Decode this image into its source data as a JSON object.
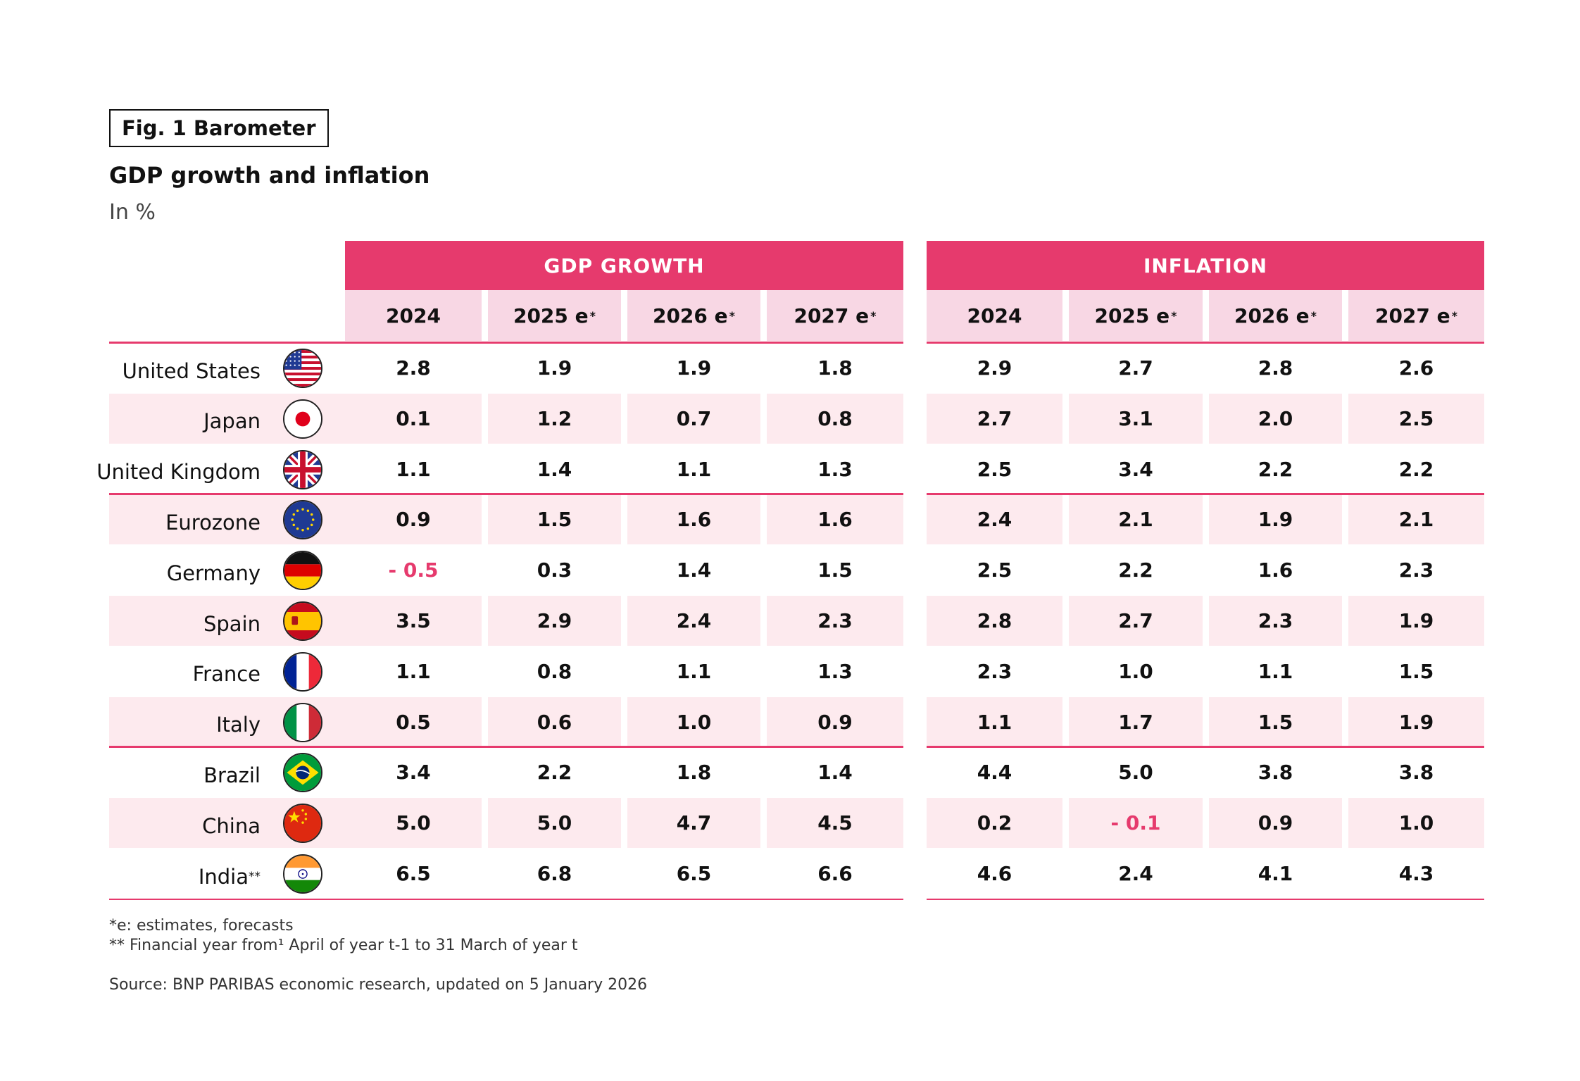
{
  "figure_label": "Fig. 1 Barometer",
  "title": "GDP growth and inflation",
  "subtitle": "In %",
  "colors": {
    "accent": "#e63a6d",
    "header_light": "#f8d7e4",
    "row_shade": "#fdeaee"
  },
  "chart_data": {
    "type": "table",
    "title": "GDP growth and inflation",
    "unit": "In %",
    "groups": [
      {
        "name": "GDP GROWTH",
        "columns": [
          {
            "year": "2024",
            "suffix": ""
          },
          {
            "year": "2025 e",
            "suffix": "*"
          },
          {
            "year": "2026 e",
            "suffix": "*"
          },
          {
            "year": "2027 e",
            "suffix": "*"
          }
        ]
      },
      {
        "name": "INFLATION",
        "columns": [
          {
            "year": "2024",
            "suffix": ""
          },
          {
            "year": "2025 e",
            "suffix": "*"
          },
          {
            "year": "2026 e",
            "suffix": "*"
          },
          {
            "year": "2027 e",
            "suffix": "*"
          }
        ]
      }
    ],
    "rows": [
      {
        "country": "United States",
        "suffix": "",
        "flag": "us-flag-icon",
        "gdp": [
          "2.8",
          "1.9",
          "1.9",
          "1.8"
        ],
        "inflation": [
          "2.9",
          "2.7",
          "2.8",
          "2.6"
        ]
      },
      {
        "country": "Japan",
        "suffix": "",
        "flag": "japan-flag-icon",
        "gdp": [
          "0.1",
          "1.2",
          "0.7",
          "0.8"
        ],
        "inflation": [
          "2.7",
          "3.1",
          "2.0",
          "2.5"
        ]
      },
      {
        "country": "United Kingdom",
        "suffix": "",
        "flag": "uk-flag-icon",
        "gdp": [
          "1.1",
          "1.4",
          "1.1",
          "1.3"
        ],
        "inflation": [
          "2.5",
          "3.4",
          "2.2",
          "2.2"
        ]
      },
      {
        "country": "Eurozone",
        "suffix": "",
        "flag": "eu-flag-icon",
        "gdp": [
          "0.9",
          "1.5",
          "1.6",
          "1.6"
        ],
        "inflation": [
          "2.4",
          "2.1",
          "1.9",
          "2.1"
        ]
      },
      {
        "country": "Germany",
        "suffix": "",
        "flag": "germany-flag-icon",
        "gdp": [
          "- 0.5",
          "0.3",
          "1.4",
          "1.5"
        ],
        "inflation": [
          "2.5",
          "2.2",
          "1.6",
          "2.3"
        ]
      },
      {
        "country": "Spain",
        "suffix": "",
        "flag": "spain-flag-icon",
        "gdp": [
          "3.5",
          "2.9",
          "2.4",
          "2.3"
        ],
        "inflation": [
          "2.8",
          "2.7",
          "2.3",
          "1.9"
        ]
      },
      {
        "country": "France",
        "suffix": "",
        "flag": "france-flag-icon",
        "gdp": [
          "1.1",
          "0.8",
          "1.1",
          "1.3"
        ],
        "inflation": [
          "2.3",
          "1.0",
          "1.1",
          "1.5"
        ]
      },
      {
        "country": "Italy",
        "suffix": "",
        "flag": "italy-flag-icon",
        "gdp": [
          "0.5",
          "0.6",
          "1.0",
          "0.9"
        ],
        "inflation": [
          "1.1",
          "1.7",
          "1.5",
          "1.9"
        ]
      },
      {
        "country": "Brazil",
        "suffix": "",
        "flag": "brazil-flag-icon",
        "gdp": [
          "3.4",
          "2.2",
          "1.8",
          "1.4"
        ],
        "inflation": [
          "4.4",
          "5.0",
          "3.8",
          "3.8"
        ]
      },
      {
        "country": "China",
        "suffix": "",
        "flag": "china-flag-icon",
        "gdp": [
          "5.0",
          "5.0",
          "4.7",
          "4.5"
        ],
        "inflation": [
          "0.2",
          "- 0.1",
          "0.9",
          "1.0"
        ]
      },
      {
        "country": "India",
        "suffix": "**",
        "flag": "india-flag-icon",
        "gdp": [
          "6.5",
          "6.8",
          "6.5",
          "6.6"
        ],
        "inflation": [
          "4.6",
          "2.4",
          "4.1",
          "4.3"
        ]
      }
    ]
  },
  "footnotes": {
    "estimates": "*e: estimates, forecasts",
    "financial_year": "** Financial year from¹ April of year t-1 to 31 March of year t",
    "source": "Source: BNP PARIBAS economic research, updated on 5 January 2026"
  }
}
